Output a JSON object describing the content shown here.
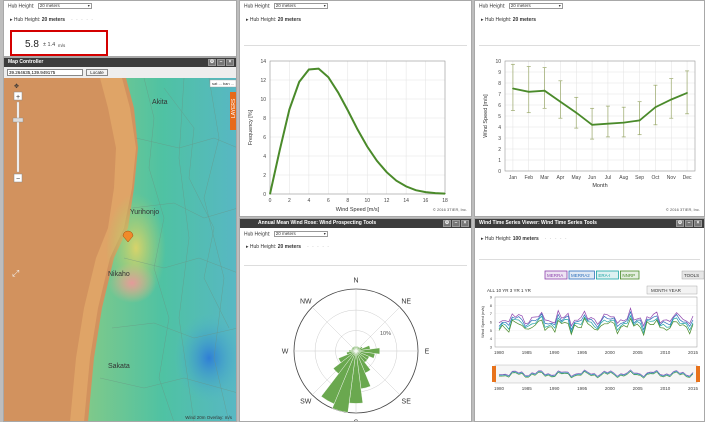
{
  "hub_label": "Hub Height:",
  "hub_select": "20 meters",
  "panel_summary": {
    "hub_value": "20 meters",
    "speed_value": "5.8",
    "speed_pm": "± 1.4",
    "speed_unit": "m/s",
    "highlight_color": "#d40000"
  },
  "map": {
    "title": "Map Controller",
    "coords": "39.264635,139.949175",
    "locate_label": "Locate",
    "layers_label": "LAYERS",
    "view_label": "sat ... ban ...",
    "towns": [
      "Akita",
      "Yurihonjo",
      "Nikaho",
      "Sakata"
    ],
    "footer": "Wind 20m Overlay: m/s",
    "colors": {
      "ocean": "#d2925e",
      "land": "#4fc2a3"
    }
  },
  "freq_panel": {
    "hub_value": "20 meters",
    "credit": "© 2016 3TIER, Inc.",
    "line_color": "#4a8a2a",
    "chart_data": {
      "type": "line",
      "xlabel": "Wind Speed [m/s]",
      "ylabel": "Frequency [%]",
      "xlim": [
        0,
        18
      ],
      "ylim": [
        0,
        14
      ],
      "xticks": [
        0,
        2,
        4,
        6,
        8,
        10,
        12,
        14,
        16,
        18
      ],
      "yticks": [
        0,
        2,
        4,
        6,
        8,
        10,
        12,
        14
      ],
      "x": [
        0,
        1,
        2,
        3,
        4,
        5,
        6,
        7,
        8,
        9,
        10,
        11,
        12,
        13,
        14,
        15,
        16,
        17,
        18
      ],
      "y": [
        0,
        4.6,
        8.9,
        11.8,
        13.1,
        13.2,
        12.3,
        10.7,
        8.8,
        6.8,
        5.0,
        3.5,
        2.3,
        1.4,
        0.8,
        0.4,
        0.2,
        0.1,
        0.04
      ]
    }
  },
  "monthly_panel": {
    "hub_value": "20 meters",
    "credit": "© 2016 3TIER, Inc.",
    "line_color": "#4a8a2a",
    "err_color": "#9aa86a",
    "chart_data": {
      "type": "line",
      "xlabel": "Month",
      "ylabel": "Wind Speed [m/s]",
      "ylim": [
        0,
        10
      ],
      "yticks": [
        0,
        1,
        2,
        3,
        4,
        5,
        6,
        7,
        8,
        9,
        10
      ],
      "categories": [
        "Jan",
        "Feb",
        "Mar",
        "Apr",
        "May",
        "Jun",
        "Jul",
        "Aug",
        "Sep",
        "Oct",
        "Nov",
        "Dec"
      ],
      "values": [
        7.5,
        7.2,
        7.3,
        6.3,
        5.3,
        4.2,
        4.3,
        4.4,
        4.6,
        5.8,
        6.5,
        7.1
      ],
      "err_low": [
        5.5,
        5.3,
        5.7,
        4.8,
        3.9,
        2.9,
        3.1,
        3.1,
        3.3,
        4.2,
        4.8,
        5.2
      ],
      "err_high": [
        9.7,
        9.5,
        9.4,
        8.2,
        6.7,
        5.7,
        5.9,
        5.8,
        6.3,
        7.8,
        8.4,
        9.1
      ]
    }
  },
  "rose_panel": {
    "title": "Annual Mean Wind Rose: Wind Prospecting Tools",
    "hub_value": "20 meters",
    "fill_color": "#6aa84f",
    "chart_data": {
      "type": "wind-rose",
      "directions": [
        "N",
        "NE",
        "E",
        "SE",
        "S",
        "SW",
        "W",
        "NW"
      ],
      "ring_label": "10%",
      "sector_percent": [
        1,
        1,
        1,
        1,
        1.5,
        3,
        5,
        4,
        3,
        3,
        5,
        8,
        11,
        13,
        12,
        6,
        4,
        2,
        1.5,
        1,
        1,
        1,
        1,
        1
      ]
    }
  },
  "ts_panel": {
    "title": "Wind Time Series Viewer: Wind Time Series Tools",
    "hub_value": "100 meters",
    "tools_label": "TOOLS",
    "legend": [
      {
        "label": "MERRA",
        "color": "#8e44ad"
      },
      {
        "label": "MERRA2",
        "color": "#2c6fbb"
      },
      {
        "label": "ERA-I",
        "color": "#1aa3a3"
      },
      {
        "label": "NNRP",
        "color": "#4a8a2a"
      }
    ],
    "range_buttons": "ALL 10 YR 3 YR 1 YR",
    "interval_buttons": "MONTH YEAR",
    "ylabel": "Wind Speed (m/s)",
    "x_ticks": [
      "1980",
      "1985",
      "1990",
      "1995",
      "2000",
      "2005",
      "2010",
      "2015"
    ],
    "y_ticks": [
      "3",
      "4",
      "5",
      "6",
      "7",
      "8",
      "9"
    ],
    "nav_ticks": [
      "1980",
      "1985",
      "1990",
      "1995",
      "2000",
      "2005",
      "2010",
      "2015"
    ]
  }
}
